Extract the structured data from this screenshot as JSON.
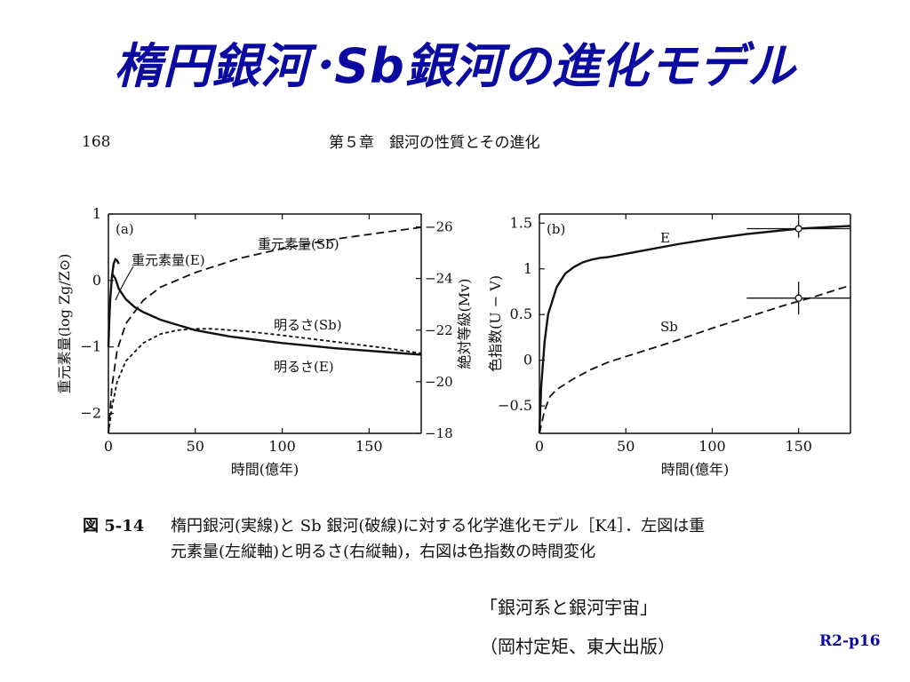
{
  "slide": {
    "title": "楕円銀河･Sb銀河の進化モデル",
    "slide_number": "R2-p16"
  },
  "book": {
    "page_number": "168",
    "chapter": "第５章　銀河の性質とその進化"
  },
  "caption": {
    "label": "図 5-14",
    "line1": "楕円銀河(実線)と Sb 銀河(破線)に対する化学進化モデル［K4］．左図は重",
    "line2": "元素量(左縦軸)と明るさ(右縦軸)，右図は色指数の時間変化"
  },
  "source": {
    "line1": "「銀河系と銀河宇宙」",
    "line2": "（岡村定矩、東大出版）"
  },
  "colors": {
    "title": "#0a0aa0",
    "ink": "#111111"
  },
  "chart_data": [
    {
      "type": "line",
      "panel_label": "(a)",
      "xlabel": "時間(億年)",
      "ylabel": "重元素量(log Zg/Z⊙)",
      "y2label": "絶対等級(Mv)",
      "xlim": [
        0,
        180
      ],
      "ylim": [
        -2.3,
        1
      ],
      "y2lim": [
        18,
        26.5
      ],
      "x_ticks": [
        0,
        50,
        100,
        150
      ],
      "y_ticks": [
        1,
        0,
        -1,
        -2
      ],
      "y2_ticks": [
        26,
        24,
        22,
        20,
        18
      ],
      "x_tick_labels": [
        "0",
        "50",
        "100",
        "150"
      ],
      "y_tick_labels": [
        "1",
        "0",
        "−1",
        "−2"
      ],
      "y2_tick_labels": [
        "−26",
        "−24",
        "−22",
        "−20",
        "−18"
      ],
      "series": [
        {
          "name": "重元素量(Sb)",
          "style": "dashed",
          "axis": "left",
          "x": [
            0,
            2,
            5,
            10,
            20,
            30,
            50,
            75,
            100,
            130,
            160,
            180
          ],
          "y": [
            -2.3,
            -1.6,
            -1.05,
            -0.65,
            -0.3,
            -0.1,
            0.12,
            0.33,
            0.48,
            0.62,
            0.73,
            0.8
          ]
        },
        {
          "name": "明るさ(Sb)",
          "style": "short-dashed",
          "axis": "right",
          "x": [
            0,
            2,
            5,
            10,
            20,
            30,
            40,
            50,
            60,
            80,
            100,
            130,
            160,
            180
          ],
          "y": [
            18,
            19.0,
            20.0,
            20.8,
            21.5,
            21.85,
            22.0,
            22.05,
            22.05,
            21.95,
            21.8,
            21.55,
            21.3,
            21.1
          ]
        },
        {
          "name": "重元素量(E)",
          "style": "solid",
          "axis": "left",
          "x": [
            0,
            0.5,
            1,
            2,
            3,
            4,
            5,
            6
          ],
          "y": [
            -1.0,
            -0.6,
            -0.3,
            0.05,
            0.25,
            0.32,
            0.3,
            0.25
          ]
        },
        {
          "name": "明るさ(E)",
          "style": "solid",
          "axis": "right",
          "x": [
            2,
            4,
            6,
            10,
            15,
            20,
            30,
            40,
            50,
            70,
            100,
            130,
            160,
            180
          ],
          "y": [
            24.2,
            24.0,
            23.6,
            23.2,
            22.9,
            22.7,
            22.4,
            22.2,
            22.0,
            21.75,
            21.5,
            21.3,
            21.15,
            21.05
          ]
        }
      ]
    },
    {
      "type": "line",
      "panel_label": "(b)",
      "xlabel": "時間(億年)",
      "ylabel": "色指数(U − V)",
      "xlim": [
        0,
        180
      ],
      "ylim": [
        -0.8,
        1.6
      ],
      "x_ticks": [
        0,
        50,
        100,
        150
      ],
      "y_ticks": [
        1.5,
        1,
        0.5,
        0,
        -0.5
      ],
      "x_tick_labels": [
        "0",
        "50",
        "100",
        "150"
      ],
      "y_tick_labels": [
        "1.5",
        "1",
        "0.5",
        "0",
        "−0.5"
      ],
      "series": [
        {
          "name": "E",
          "style": "solid",
          "x": [
            0,
            1,
            3,
            5,
            10,
            15,
            20,
            25,
            30,
            35,
            40,
            60,
            80,
            100,
            120,
            140,
            150,
            160,
            180
          ],
          "y": [
            -0.8,
            -0.3,
            0.2,
            0.5,
            0.8,
            0.95,
            1.02,
            1.07,
            1.1,
            1.12,
            1.13,
            1.2,
            1.27,
            1.33,
            1.38,
            1.42,
            1.44,
            1.45,
            1.47
          ]
        },
        {
          "name": "Sb",
          "style": "dashed",
          "x": [
            0,
            3,
            6,
            10,
            20,
            30,
            40,
            60,
            80,
            100,
            120,
            140,
            160,
            180
          ],
          "y": [
            -0.8,
            -0.55,
            -0.4,
            -0.32,
            -0.2,
            -0.1,
            -0.02,
            0.1,
            0.22,
            0.35,
            0.47,
            0.59,
            0.7,
            0.82
          ]
        }
      ],
      "error_points": [
        {
          "x": 150,
          "y": 1.44,
          "xerr": 30,
          "yerr": 0.1
        },
        {
          "x": 150,
          "y": 0.68,
          "xerr": 30,
          "yerr": 0.18
        }
      ]
    }
  ]
}
